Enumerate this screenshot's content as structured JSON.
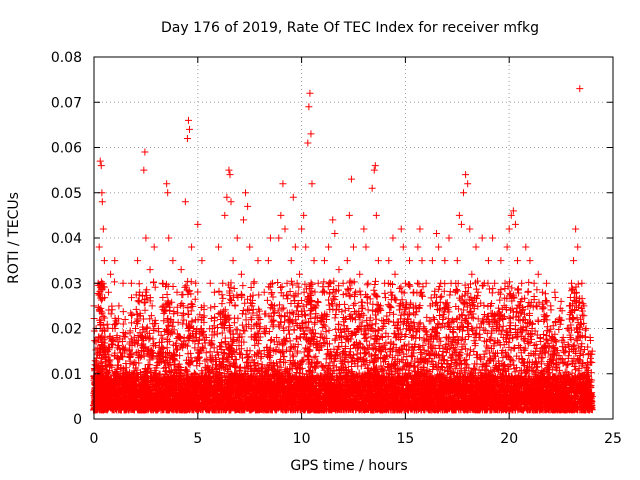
{
  "chart_data": {
    "type": "scatter",
    "title": "Day 176 of 2019, Rate Of TEC Index for receiver mfkg",
    "xlabel": "GPS time / hours",
    "ylabel": "ROTI / TECUs",
    "xlim": [
      0,
      25
    ],
    "ylim": [
      0,
      0.08
    ],
    "x_ticks": [
      "0",
      "5",
      "10",
      "15",
      "20",
      "25"
    ],
    "y_ticks": [
      "0",
      "0.01",
      "0.02",
      "0.03",
      "0.04",
      "0.05",
      "0.06",
      "0.07",
      "0.08"
    ],
    "grid": true,
    "marker": "+",
    "color": "#ff0000",
    "series": [
      {
        "name": "ROTI",
        "points": [
          [
            0.0,
            0.025
          ],
          [
            0.05,
            0.012
          ],
          [
            0.1,
            0.02
          ],
          [
            0.15,
            0.008
          ],
          [
            0.2,
            0.03
          ],
          [
            0.25,
            0.038
          ],
          [
            0.3,
            0.057
          ],
          [
            0.35,
            0.056
          ],
          [
            0.38,
            0.05
          ],
          [
            0.4,
            0.048
          ],
          [
            0.45,
            0.042
          ],
          [
            0.5,
            0.035
          ],
          [
            0.55,
            0.015
          ],
          [
            0.6,
            0.008
          ],
          [
            0.7,
            0.028
          ],
          [
            0.8,
            0.032
          ],
          [
            0.9,
            0.02
          ],
          [
            1.0,
            0.035
          ],
          [
            1.1,
            0.018
          ],
          [
            1.2,
            0.025
          ],
          [
            1.3,
            0.01
          ],
          [
            1.4,
            0.03
          ],
          [
            1.5,
            0.022
          ],
          [
            1.6,
            0.008
          ],
          [
            1.7,
            0.015
          ],
          [
            1.8,
            0.03
          ],
          [
            1.9,
            0.012
          ],
          [
            2.0,
            0.02
          ],
          [
            2.1,
            0.035
          ],
          [
            2.2,
            0.028
          ],
          [
            2.3,
            0.018
          ],
          [
            2.4,
            0.055
          ],
          [
            2.45,
            0.059
          ],
          [
            2.5,
            0.04
          ],
          [
            2.6,
            0.015
          ],
          [
            2.7,
            0.033
          ],
          [
            2.8,
            0.025
          ],
          [
            2.9,
            0.038
          ],
          [
            3.0,
            0.01
          ],
          [
            3.1,
            0.02
          ],
          [
            3.2,
            0.015
          ],
          [
            3.3,
            0.03
          ],
          [
            3.4,
            0.024
          ],
          [
            3.5,
            0.052
          ],
          [
            3.55,
            0.05
          ],
          [
            3.6,
            0.04
          ],
          [
            3.7,
            0.022
          ],
          [
            3.8,
            0.035
          ],
          [
            3.9,
            0.012
          ],
          [
            4.0,
            0.028
          ],
          [
            4.1,
            0.018
          ],
          [
            4.2,
            0.033
          ],
          [
            4.3,
            0.025
          ],
          [
            4.4,
            0.048
          ],
          [
            4.5,
            0.062
          ],
          [
            4.55,
            0.066
          ],
          [
            4.6,
            0.064
          ],
          [
            4.7,
            0.038
          ],
          [
            4.8,
            0.02
          ],
          [
            4.9,
            0.03
          ],
          [
            5.0,
            0.043
          ],
          [
            5.1,
            0.015
          ],
          [
            5.2,
            0.035
          ],
          [
            5.3,
            0.025
          ],
          [
            5.4,
            0.018
          ],
          [
            5.5,
            0.008
          ],
          [
            5.6,
            0.03
          ],
          [
            5.7,
            0.02
          ],
          [
            5.8,
            0.028
          ],
          [
            5.9,
            0.012
          ],
          [
            6.0,
            0.038
          ],
          [
            6.1,
            0.022
          ],
          [
            6.2,
            0.03
          ],
          [
            6.3,
            0.045
          ],
          [
            6.4,
            0.049
          ],
          [
            6.5,
            0.055
          ],
          [
            6.55,
            0.054
          ],
          [
            6.6,
            0.048
          ],
          [
            6.7,
            0.035
          ],
          [
            6.8,
            0.025
          ],
          [
            6.9,
            0.04
          ],
          [
            7.0,
            0.018
          ],
          [
            7.1,
            0.032
          ],
          [
            7.2,
            0.044
          ],
          [
            7.3,
            0.05
          ],
          [
            7.4,
            0.047
          ],
          [
            7.5,
            0.038
          ],
          [
            7.6,
            0.025
          ],
          [
            7.7,
            0.03
          ],
          [
            7.8,
            0.018
          ],
          [
            7.9,
            0.035
          ],
          [
            8.0,
            0.022
          ],
          [
            8.1,
            0.012
          ],
          [
            8.2,
            0.028
          ],
          [
            8.3,
            0.02
          ],
          [
            8.4,
            0.035
          ],
          [
            8.5,
            0.04
          ],
          [
            8.6,
            0.03
          ],
          [
            8.7,
            0.025
          ],
          [
            8.8,
            0.018
          ],
          [
            8.9,
            0.04
          ],
          [
            9.0,
            0.045
          ],
          [
            9.1,
            0.052
          ],
          [
            9.2,
            0.042
          ],
          [
            9.3,
            0.03
          ],
          [
            9.4,
            0.022
          ],
          [
            9.5,
            0.035
          ],
          [
            9.6,
            0.049
          ],
          [
            9.7,
            0.038
          ],
          [
            9.8,
            0.025
          ],
          [
            9.9,
            0.032
          ],
          [
            10.0,
            0.042
          ],
          [
            10.1,
            0.045
          ],
          [
            10.2,
            0.038
          ],
          [
            10.3,
            0.061
          ],
          [
            10.35,
            0.069
          ],
          [
            10.4,
            0.072
          ],
          [
            10.45,
            0.063
          ],
          [
            10.5,
            0.052
          ],
          [
            10.6,
            0.035
          ],
          [
            10.7,
            0.025
          ],
          [
            10.8,
            0.03
          ],
          [
            10.9,
            0.018
          ],
          [
            11.0,
            0.028
          ],
          [
            11.1,
            0.035
          ],
          [
            11.2,
            0.022
          ],
          [
            11.3,
            0.038
          ],
          [
            11.4,
            0.03
          ],
          [
            11.5,
            0.044
          ],
          [
            11.6,
            0.041
          ],
          [
            11.7,
            0.025
          ],
          [
            11.8,
            0.033
          ],
          [
            11.9,
            0.018
          ],
          [
            12.0,
            0.03
          ],
          [
            12.1,
            0.022
          ],
          [
            12.2,
            0.035
          ],
          [
            12.3,
            0.045
          ],
          [
            12.4,
            0.053
          ],
          [
            12.5,
            0.038
          ],
          [
            12.6,
            0.028
          ],
          [
            12.7,
            0.02
          ],
          [
            12.8,
            0.032
          ],
          [
            12.9,
            0.025
          ],
          [
            13.0,
            0.042
          ],
          [
            13.1,
            0.038
          ],
          [
            13.2,
            0.03
          ],
          [
            13.3,
            0.02
          ],
          [
            13.4,
            0.051
          ],
          [
            13.5,
            0.055
          ],
          [
            13.55,
            0.056
          ],
          [
            13.6,
            0.045
          ],
          [
            13.7,
            0.035
          ],
          [
            13.8,
            0.025
          ],
          [
            13.9,
            0.018
          ],
          [
            14.0,
            0.03
          ],
          [
            14.1,
            0.022
          ],
          [
            14.2,
            0.035
          ],
          [
            14.3,
            0.028
          ],
          [
            14.4,
            0.04
          ],
          [
            14.5,
            0.032
          ],
          [
            14.6,
            0.02
          ],
          [
            14.7,
            0.025
          ],
          [
            14.8,
            0.042
          ],
          [
            14.9,
            0.038
          ],
          [
            15.0,
            0.03
          ],
          [
            15.1,
            0.022
          ],
          [
            15.2,
            0.035
          ],
          [
            15.3,
            0.018
          ],
          [
            15.4,
            0.028
          ],
          [
            15.5,
            0.025
          ],
          [
            15.6,
            0.038
          ],
          [
            15.7,
            0.042
          ],
          [
            15.8,
            0.035
          ],
          [
            15.9,
            0.02
          ],
          [
            16.0,
            0.03
          ],
          [
            16.1,
            0.015
          ],
          [
            16.2,
            0.025
          ],
          [
            16.3,
            0.035
          ],
          [
            16.4,
            0.022
          ],
          [
            16.5,
            0.041
          ],
          [
            16.6,
            0.038
          ],
          [
            16.7,
            0.03
          ],
          [
            16.8,
            0.022
          ],
          [
            16.9,
            0.035
          ],
          [
            17.0,
            0.025
          ],
          [
            17.1,
            0.04
          ],
          [
            17.2,
            0.03
          ],
          [
            17.3,
            0.018
          ],
          [
            17.4,
            0.028
          ],
          [
            17.5,
            0.035
          ],
          [
            17.6,
            0.045
          ],
          [
            17.7,
            0.043
          ],
          [
            17.8,
            0.05
          ],
          [
            17.9,
            0.054
          ],
          [
            18.0,
            0.052
          ],
          [
            18.1,
            0.042
          ],
          [
            18.2,
            0.032
          ],
          [
            18.3,
            0.025
          ],
          [
            18.4,
            0.038
          ],
          [
            18.5,
            0.028
          ],
          [
            18.6,
            0.018
          ],
          [
            18.7,
            0.04
          ],
          [
            18.8,
            0.03
          ],
          [
            18.9,
            0.022
          ],
          [
            19.0,
            0.035
          ],
          [
            19.1,
            0.025
          ],
          [
            19.2,
            0.04
          ],
          [
            19.3,
            0.03
          ],
          [
            19.4,
            0.02
          ],
          [
            19.5,
            0.028
          ],
          [
            19.6,
            0.035
          ],
          [
            19.7,
            0.022
          ],
          [
            19.8,
            0.03
          ],
          [
            19.9,
            0.038
          ],
          [
            20.0,
            0.042
          ],
          [
            20.1,
            0.045
          ],
          [
            20.2,
            0.046
          ],
          [
            20.3,
            0.043
          ],
          [
            20.4,
            0.035
          ],
          [
            20.5,
            0.025
          ],
          [
            20.6,
            0.03
          ],
          [
            20.7,
            0.022
          ],
          [
            20.8,
            0.038
          ],
          [
            20.9,
            0.028
          ],
          [
            21.0,
            0.035
          ],
          [
            21.1,
            0.02
          ],
          [
            21.2,
            0.03
          ],
          [
            21.3,
            0.025
          ],
          [
            21.4,
            0.032
          ],
          [
            21.5,
            0.018
          ],
          [
            21.6,
            0.028
          ],
          [
            21.7,
            0.022
          ],
          [
            21.8,
            0.03
          ],
          [
            21.9,
            0.015
          ],
          [
            22.0,
            0.025
          ],
          [
            22.1,
            0.018
          ],
          [
            22.2,
            0.028
          ],
          [
            22.3,
            0.012
          ],
          [
            22.4,
            0.022
          ],
          [
            22.5,
            0.026
          ],
          [
            22.6,
            0.018
          ],
          [
            22.7,
            0.015
          ],
          [
            22.8,
            0.02
          ],
          [
            22.9,
            0.025
          ],
          [
            23.0,
            0.03
          ],
          [
            23.1,
            0.035
          ],
          [
            23.2,
            0.042
          ],
          [
            23.3,
            0.038
          ],
          [
            23.4,
            0.073
          ],
          [
            23.5,
            0.03
          ],
          [
            23.6,
            0.025
          ],
          [
            23.7,
            0.02
          ],
          [
            23.8,
            0.012
          ],
          [
            23.9,
            0.018
          ],
          [
            24.0,
            0.015
          ]
        ]
      }
    ]
  }
}
